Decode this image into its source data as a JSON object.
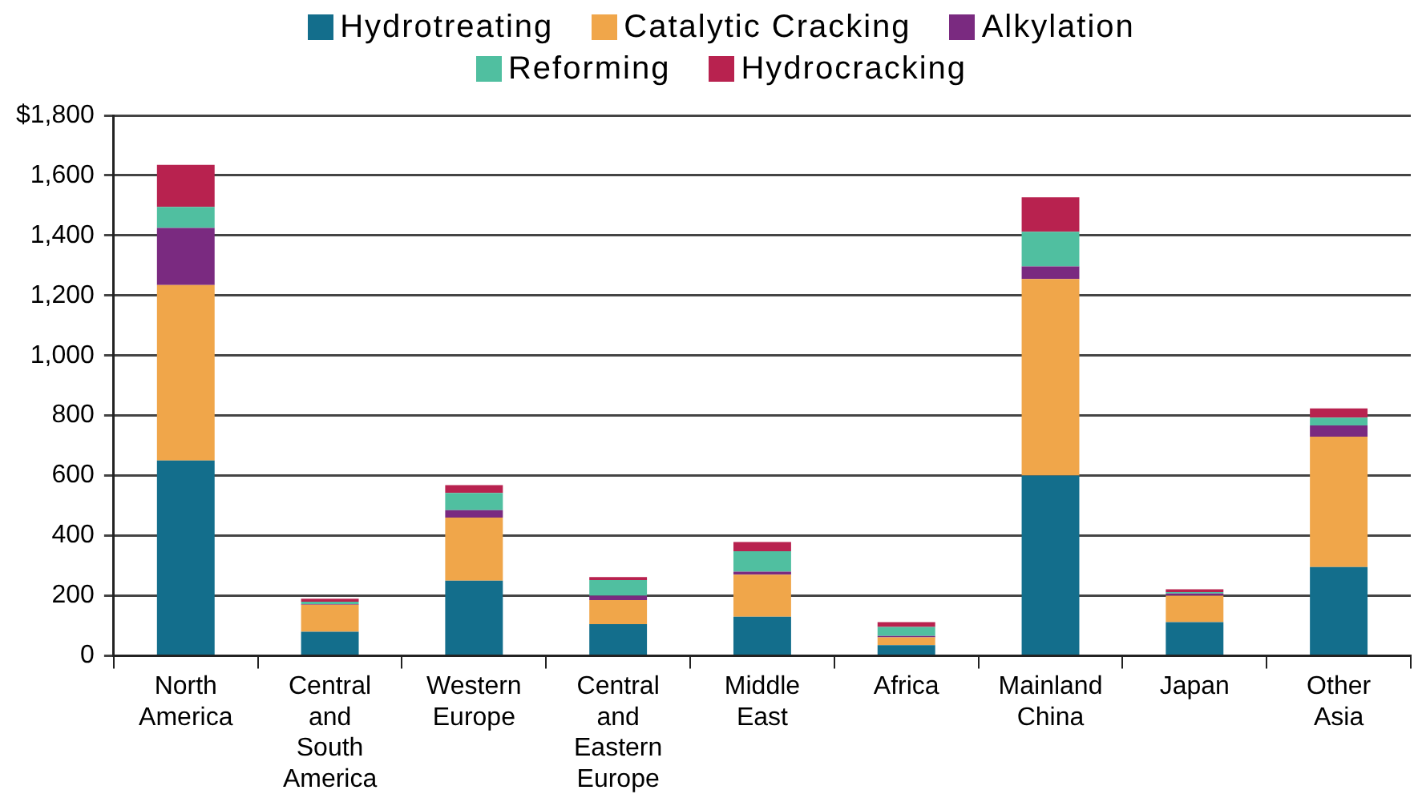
{
  "chart_data": {
    "type": "bar",
    "stacked": true,
    "categories": [
      "North America",
      "Central and South America",
      "Western Europe",
      "Central and Eastern Europe",
      "Middle East",
      "Africa",
      "Mainland China",
      "Japan",
      "Other Asia"
    ],
    "series": [
      {
        "name": "Hydrotreating",
        "color": "#136e8c",
        "values": [
          650,
          80,
          250,
          105,
          130,
          35,
          600,
          112,
          295
        ]
      },
      {
        "name": "Catalytic Cracking",
        "color": "#f0a64a",
        "values": [
          585,
          90,
          210,
          80,
          140,
          26,
          655,
          88,
          435
        ]
      },
      {
        "name": "Alkylation",
        "color": "#7a2a80",
        "values": [
          190,
          2,
          25,
          15,
          10,
          5,
          42,
          7,
          37
        ]
      },
      {
        "name": "Reforming",
        "color": "#50bfa0",
        "values": [
          70,
          8,
          57,
          52,
          68,
          30,
          115,
          5,
          26
        ]
      },
      {
        "name": "Hydrocracking",
        "color": "#b8224f",
        "values": [
          140,
          10,
          26,
          10,
          31,
          16,
          115,
          9,
          31
        ]
      }
    ],
    "ylim": [
      0,
      1800
    ],
    "yticks": [
      {
        "value": 0,
        "label": "0"
      },
      {
        "value": 200,
        "label": "200"
      },
      {
        "value": 400,
        "label": "400"
      },
      {
        "value": 600,
        "label": "600"
      },
      {
        "value": 800,
        "label": "800"
      },
      {
        "value": 1000,
        "label": "1,000"
      },
      {
        "value": 1200,
        "label": "1,200"
      },
      {
        "value": 1400,
        "label": "1,400"
      },
      {
        "value": 1600,
        "label": "1,600"
      },
      {
        "value": 1800,
        "label": "$1,800"
      }
    ],
    "grid": "y",
    "legend": "top"
  }
}
